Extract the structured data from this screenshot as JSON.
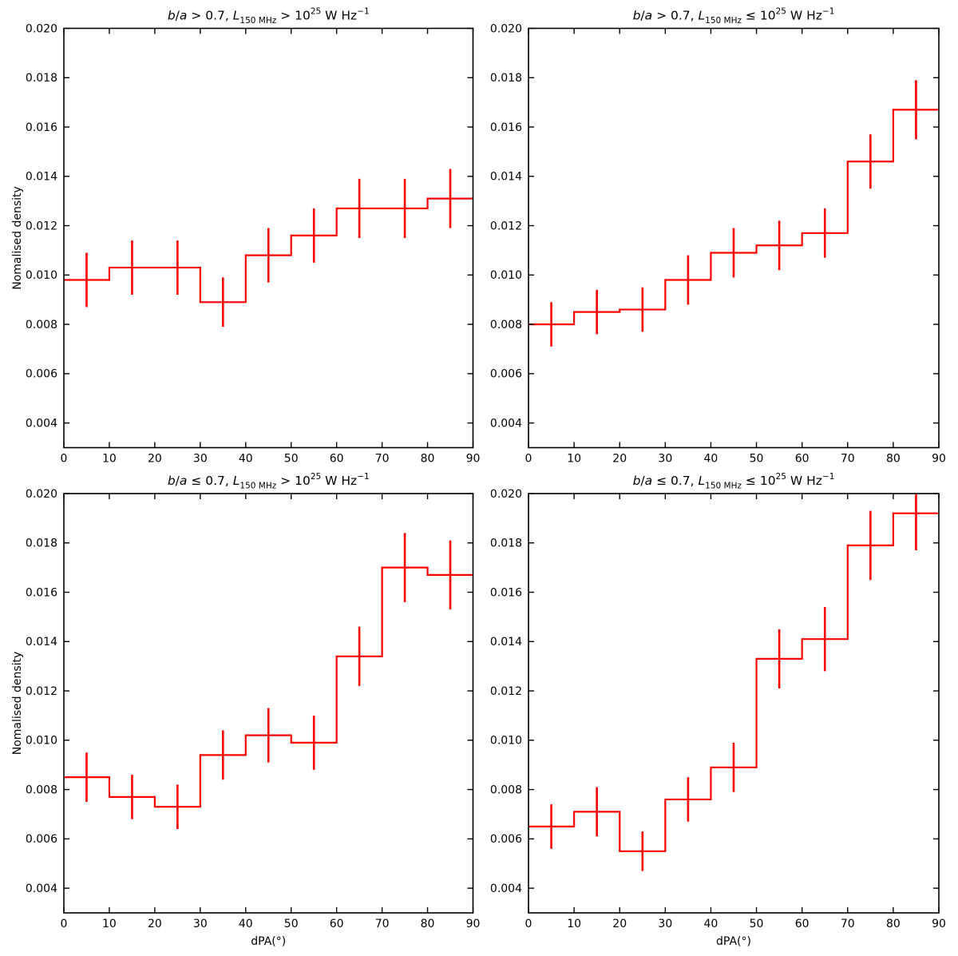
{
  "figure": {
    "background": "#ffffff",
    "accent_color": "#ff0000",
    "ylabel": "Nomalised density",
    "xlabel": "dPA(°)"
  },
  "chart_data": [
    {
      "id": "top-left",
      "type": "step",
      "title": "b/a > 0.7, L150MHz > 10^25 W Hz^-1",
      "title_segments": [
        {
          "t": "b",
          "s": "it"
        },
        {
          "t": "/",
          "s": ""
        },
        {
          "t": "a",
          "s": "it"
        },
        {
          "t": " > 0.7,  ",
          "s": ""
        },
        {
          "t": "L",
          "s": "it"
        },
        {
          "t": "150 MHz",
          "s": "sub"
        },
        {
          "t": " > 10",
          "s": ""
        },
        {
          "t": "25",
          "s": "sup"
        },
        {
          "t": " W Hz",
          "s": ""
        },
        {
          "t": "−1",
          "s": "sup"
        }
      ],
      "bin_edges": [
        0,
        10,
        20,
        30,
        40,
        50,
        60,
        70,
        80,
        90
      ],
      "bin_centers": [
        5,
        15,
        25,
        35,
        45,
        55,
        65,
        75,
        85
      ],
      "values": [
        0.0098,
        0.0103,
        0.0103,
        0.0089,
        0.0108,
        0.0116,
        0.0127,
        0.0127,
        0.0131
      ],
      "errors": [
        0.0011,
        0.0011,
        0.0011,
        0.001,
        0.0011,
        0.0011,
        0.0012,
        0.0012,
        0.0012
      ],
      "xlim": [
        0,
        90
      ],
      "ylim": [
        0.003,
        0.02
      ],
      "xticks": [
        0,
        10,
        20,
        30,
        40,
        50,
        60,
        70,
        80,
        90
      ],
      "xtick_labels": [
        "0",
        "10",
        "20",
        "30",
        "40",
        "50",
        "60",
        "70",
        "80",
        "90"
      ],
      "yticks": [
        0.004,
        0.006,
        0.008,
        0.01,
        0.012,
        0.014,
        0.016,
        0.018,
        0.02
      ],
      "ytick_labels": [
        "0.004",
        "0.006",
        "0.008",
        "0.010",
        "0.012",
        "0.014",
        "0.016",
        "0.018",
        "0.020"
      ],
      "show_ylabel": true,
      "show_xlabel": false,
      "grid": false,
      "line_color": "#ff0000"
    },
    {
      "id": "top-right",
      "type": "step",
      "title": "b/a > 0.7, L150MHz ≤ 10^25 W Hz^-1",
      "title_segments": [
        {
          "t": "b",
          "s": "it"
        },
        {
          "t": "/",
          "s": ""
        },
        {
          "t": "a",
          "s": "it"
        },
        {
          "t": " > 0.7,  ",
          "s": ""
        },
        {
          "t": "L",
          "s": "it"
        },
        {
          "t": "150 MHz",
          "s": "sub"
        },
        {
          "t": " ≤ 10",
          "s": ""
        },
        {
          "t": "25",
          "s": "sup"
        },
        {
          "t": " W Hz",
          "s": ""
        },
        {
          "t": "−1",
          "s": "sup"
        }
      ],
      "bin_edges": [
        0,
        10,
        20,
        30,
        40,
        50,
        60,
        70,
        80,
        90
      ],
      "bin_centers": [
        5,
        15,
        25,
        35,
        45,
        55,
        65,
        75,
        85
      ],
      "values": [
        0.008,
        0.0085,
        0.0086,
        0.0098,
        0.0109,
        0.0112,
        0.0117,
        0.0146,
        0.0167
      ],
      "errors": [
        0.0009,
        0.0009,
        0.0009,
        0.001,
        0.001,
        0.001,
        0.001,
        0.0011,
        0.0012
      ],
      "xlim": [
        0,
        90
      ],
      "ylim": [
        0.003,
        0.02
      ],
      "xticks": [
        0,
        10,
        20,
        30,
        40,
        50,
        60,
        70,
        80,
        90
      ],
      "xtick_labels": [
        "0",
        "10",
        "20",
        "30",
        "40",
        "50",
        "60",
        "70",
        "80",
        "90"
      ],
      "yticks": [
        0.004,
        0.006,
        0.008,
        0.01,
        0.012,
        0.014,
        0.016,
        0.018,
        0.02
      ],
      "ytick_labels": [
        "0.004",
        "0.006",
        "0.008",
        "0.010",
        "0.012",
        "0.014",
        "0.016",
        "0.018",
        "0.020"
      ],
      "show_ylabel": false,
      "show_xlabel": false,
      "grid": false,
      "line_color": "#ff0000"
    },
    {
      "id": "bottom-left",
      "type": "step",
      "title": "b/a ≤ 0.7, L150MHz > 10^25 W Hz^-1",
      "title_segments": [
        {
          "t": "b",
          "s": "it"
        },
        {
          "t": "/",
          "s": ""
        },
        {
          "t": "a",
          "s": "it"
        },
        {
          "t": " ≤ 0.7,  ",
          "s": ""
        },
        {
          "t": "L",
          "s": "it"
        },
        {
          "t": "150 MHz",
          "s": "sub"
        },
        {
          "t": " > 10",
          "s": ""
        },
        {
          "t": "25",
          "s": "sup"
        },
        {
          "t": " W Hz",
          "s": ""
        },
        {
          "t": "−1",
          "s": "sup"
        }
      ],
      "bin_edges": [
        0,
        10,
        20,
        30,
        40,
        50,
        60,
        70,
        80,
        90
      ],
      "bin_centers": [
        5,
        15,
        25,
        35,
        45,
        55,
        65,
        75,
        85
      ],
      "values": [
        0.0085,
        0.0077,
        0.0073,
        0.0094,
        0.0102,
        0.0099,
        0.0134,
        0.017,
        0.0167
      ],
      "errors": [
        0.001,
        0.0009,
        0.0009,
        0.001,
        0.0011,
        0.0011,
        0.0012,
        0.0014,
        0.0014
      ],
      "xlim": [
        0,
        90
      ],
      "ylim": [
        0.003,
        0.02
      ],
      "xticks": [
        0,
        10,
        20,
        30,
        40,
        50,
        60,
        70,
        80,
        90
      ],
      "xtick_labels": [
        "0",
        "10",
        "20",
        "30",
        "40",
        "50",
        "60",
        "70",
        "80",
        "90"
      ],
      "yticks": [
        0.004,
        0.006,
        0.008,
        0.01,
        0.012,
        0.014,
        0.016,
        0.018,
        0.02
      ],
      "ytick_labels": [
        "0.004",
        "0.006",
        "0.008",
        "0.010",
        "0.012",
        "0.014",
        "0.016",
        "0.018",
        "0.020"
      ],
      "show_ylabel": true,
      "show_xlabel": true,
      "grid": false,
      "line_color": "#ff0000"
    },
    {
      "id": "bottom-right",
      "type": "step",
      "title": "b/a ≤ 0.7, L150MHz ≤ 10^25 W Hz^-1",
      "title_segments": [
        {
          "t": "b",
          "s": "it"
        },
        {
          "t": "/",
          "s": ""
        },
        {
          "t": "a",
          "s": "it"
        },
        {
          "t": " ≤ 0.7,  ",
          "s": ""
        },
        {
          "t": "L",
          "s": "it"
        },
        {
          "t": "150 MHz",
          "s": "sub"
        },
        {
          "t": " ≤ 10",
          "s": ""
        },
        {
          "t": "25",
          "s": "sup"
        },
        {
          "t": " W Hz",
          "s": ""
        },
        {
          "t": "−1",
          "s": "sup"
        }
      ],
      "bin_edges": [
        0,
        10,
        20,
        30,
        40,
        50,
        60,
        70,
        80,
        90
      ],
      "bin_centers": [
        5,
        15,
        25,
        35,
        45,
        55,
        65,
        75,
        85
      ],
      "values": [
        0.0065,
        0.0071,
        0.0055,
        0.0076,
        0.0089,
        0.0133,
        0.0141,
        0.0179,
        0.0192
      ],
      "errors": [
        0.0009,
        0.001,
        0.0008,
        0.0009,
        0.001,
        0.0012,
        0.0013,
        0.0014,
        0.0015
      ],
      "xlim": [
        0,
        90
      ],
      "ylim": [
        0.003,
        0.02
      ],
      "xticks": [
        0,
        10,
        20,
        30,
        40,
        50,
        60,
        70,
        80,
        90
      ],
      "xtick_labels": [
        "0",
        "10",
        "20",
        "30",
        "40",
        "50",
        "60",
        "70",
        "80",
        "90"
      ],
      "yticks": [
        0.004,
        0.006,
        0.008,
        0.01,
        0.012,
        0.014,
        0.016,
        0.018,
        0.02
      ],
      "ytick_labels": [
        "0.004",
        "0.006",
        "0.008",
        "0.010",
        "0.012",
        "0.014",
        "0.016",
        "0.018",
        "0.020"
      ],
      "show_ylabel": false,
      "show_xlabel": true,
      "grid": false,
      "line_color": "#ff0000"
    }
  ]
}
